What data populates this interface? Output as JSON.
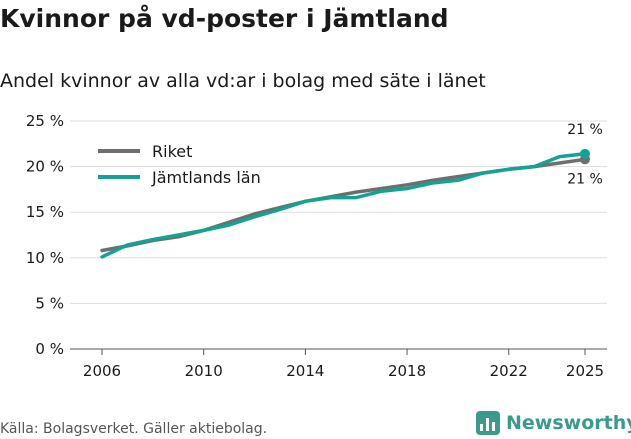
{
  "title": "Kvinnor på vd-poster i Jämtland",
  "subtitle": "Andel kvinnor av alla vd:ar i bolag med säte i länet",
  "source": "Källa: Bolagsverket. Gäller aktiebolag.",
  "brand": "Newsworthy",
  "colors": {
    "riket": "#6e6e6e",
    "jamtland": "#12a394",
    "grid": "#dddddd",
    "brand": "#3a9a8c"
  },
  "chart_data": {
    "type": "line",
    "title": "Kvinnor på vd-poster i Jämtland",
    "subtitle": "Andel kvinnor av alla vd:ar i bolag med säte i länet",
    "xlabel": "",
    "ylabel": "",
    "xlim": [
      2006,
      2025
    ],
    "ylim": [
      0,
      25
    ],
    "x_ticks": [
      2006,
      2010,
      2014,
      2018,
      2022,
      2025
    ],
    "x_tick_labels": [
      "2006",
      "2010",
      "2014",
      "2018",
      "2022",
      "2025"
    ],
    "y_ticks": [
      0,
      5,
      10,
      15,
      20,
      25
    ],
    "y_tick_labels": [
      "0 %",
      "5 %",
      "10 %",
      "15 %",
      "20 %",
      "25 %"
    ],
    "grid": true,
    "legend_position": "top-left",
    "x": [
      2006,
      2007,
      2008,
      2009,
      2010,
      2011,
      2012,
      2013,
      2014,
      2015,
      2016,
      2017,
      2018,
      2019,
      2020,
      2021,
      2022,
      2023,
      2024,
      2025
    ],
    "series": [
      {
        "name": "Riket",
        "color_key": "riket",
        "values": [
          10.8,
          11.3,
          11.9,
          12.3,
          13.0,
          13.9,
          14.8,
          15.5,
          16.2,
          16.7,
          17.2,
          17.6,
          18.0,
          18.5,
          18.9,
          19.3,
          19.7,
          20.0,
          20.4,
          20.8
        ],
        "end_label": "21 %"
      },
      {
        "name": "Jämtlands län",
        "color_key": "jamtland",
        "values": [
          10.1,
          11.4,
          12.0,
          12.5,
          13.0,
          13.6,
          14.5,
          15.3,
          16.2,
          16.6,
          16.6,
          17.3,
          17.6,
          18.2,
          18.5,
          19.3,
          19.7,
          20.0,
          21.1,
          21.4
        ],
        "end_label": "21 %"
      }
    ]
  }
}
